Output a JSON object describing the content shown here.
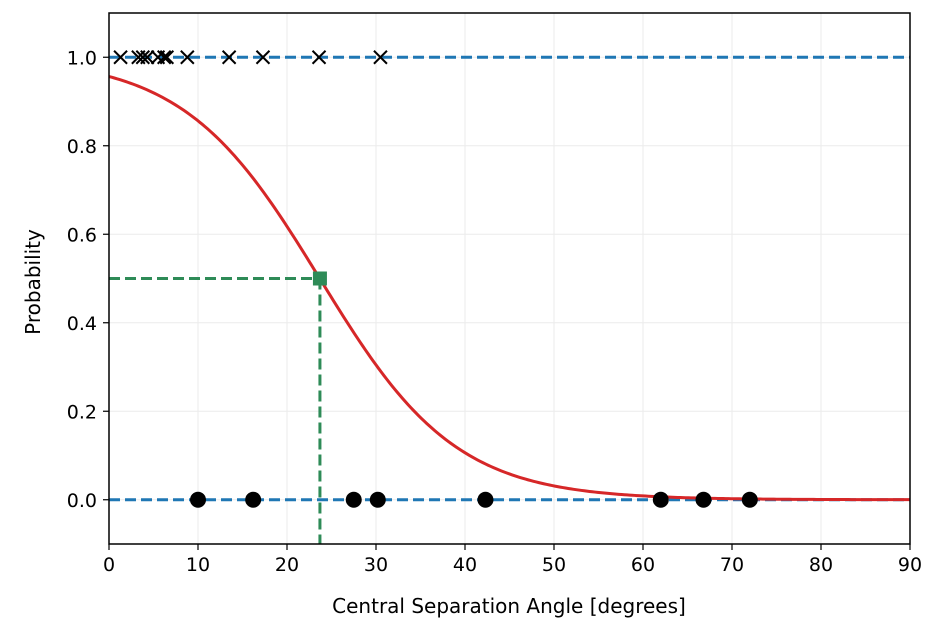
{
  "chart_data": {
    "type": "scatter",
    "xlabel": "Central Separation Angle [degrees]",
    "ylabel": "Probability",
    "xlim": [
      0,
      90
    ],
    "ylim": [
      -0.1,
      1.1
    ],
    "xticks": [
      0,
      10,
      20,
      30,
      40,
      50,
      60,
      70,
      80,
      90
    ],
    "yticks": [
      0.0,
      0.2,
      0.4,
      0.6,
      0.8,
      1.0
    ],
    "ytick_labels": [
      "0.0",
      "0.2",
      "0.4",
      "0.6",
      "0.8",
      "1.0"
    ],
    "grid": true,
    "reference_lines": [
      {
        "y": 1.0,
        "color": "#1f77b4",
        "style": "dashed"
      },
      {
        "y": 0.0,
        "color": "#1f77b4",
        "style": "dashed"
      }
    ],
    "series": [
      {
        "type": "scatter",
        "marker": "x",
        "color": "#000000",
        "x": [
          1.3,
          3.3,
          3.8,
          4.3,
          5.5,
          6.2,
          6.5,
          8.8,
          13.5,
          17.3,
          23.6,
          30.5
        ],
        "y": [
          1,
          1,
          1,
          1,
          1,
          1,
          1,
          1,
          1,
          1,
          1,
          1
        ]
      },
      {
        "type": "scatter",
        "marker": "o",
        "color": "#000000",
        "x": [
          10.0,
          16.2,
          27.5,
          30.2,
          42.3,
          62.0,
          66.8,
          72.0
        ],
        "y": [
          0,
          0,
          0,
          0,
          0,
          0,
          0,
          0
        ]
      },
      {
        "type": "line",
        "color": "#d62728",
        "model": "logistic",
        "intercept": 3.09,
        "slope": -0.1305,
        "x_range": [
          0,
          90
        ]
      }
    ],
    "threshold": {
      "x": 23.7,
      "y": 0.5,
      "marker": "square",
      "color": "#2e8b57",
      "style": "dashed"
    }
  }
}
